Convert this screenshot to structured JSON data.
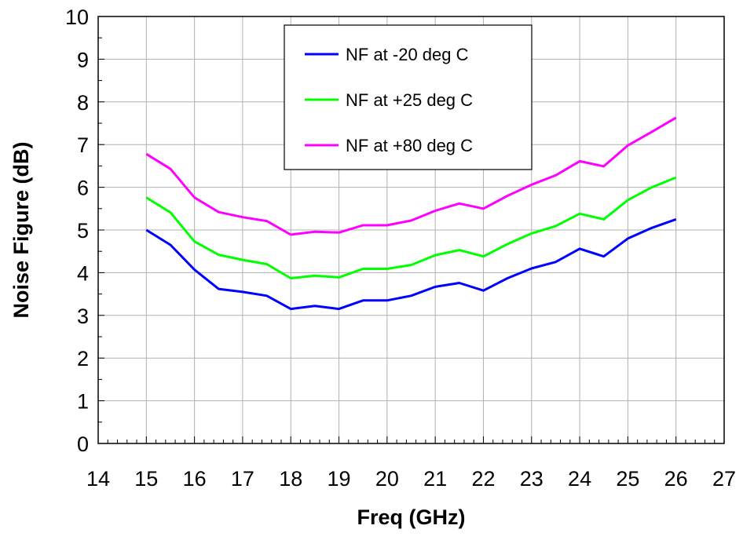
{
  "chart_data": {
    "type": "line",
    "title": "",
    "xlabel": "Freq (GHz)",
    "ylabel": "Noise Figure (dB)",
    "xlim": [
      14,
      27
    ],
    "ylim": [
      0,
      10
    ],
    "xticks": [
      14,
      15,
      16,
      17,
      18,
      19,
      20,
      21,
      22,
      23,
      24,
      25,
      26,
      27
    ],
    "yticks": [
      0,
      1,
      2,
      3,
      4,
      5,
      6,
      7,
      8,
      9,
      10
    ],
    "grid": true,
    "legend_position": "top-center",
    "x": [
      15,
      15.5,
      16,
      16.5,
      17,
      17.5,
      18,
      18.5,
      19,
      19.5,
      20,
      20.5,
      21,
      21.5,
      22,
      22.5,
      23,
      23.5,
      24,
      24.5,
      25,
      25.5,
      26
    ],
    "series": [
      {
        "name": "NF at -20 deg C",
        "color": "#0000ff",
        "values": [
          5.0,
          4.65,
          4.07,
          3.62,
          3.55,
          3.46,
          3.15,
          3.22,
          3.15,
          3.35,
          3.35,
          3.46,
          3.67,
          3.76,
          3.58,
          3.87,
          4.1,
          4.25,
          4.56,
          4.38,
          4.8,
          5.05,
          5.25
        ]
      },
      {
        "name": "NF at +25 deg C",
        "color": "#00ff00",
        "values": [
          5.76,
          5.41,
          4.73,
          4.42,
          4.3,
          4.2,
          3.87,
          3.93,
          3.89,
          4.09,
          4.09,
          4.18,
          4.41,
          4.53,
          4.38,
          4.67,
          4.92,
          5.09,
          5.38,
          5.25,
          5.7,
          6.0,
          6.23
        ]
      },
      {
        "name": "NF at +80 deg C",
        "color": "#ff00ff",
        "values": [
          6.78,
          6.43,
          5.76,
          5.42,
          5.3,
          5.21,
          4.89,
          4.96,
          4.94,
          5.11,
          5.11,
          5.22,
          5.45,
          5.62,
          5.5,
          5.8,
          6.06,
          6.28,
          6.61,
          6.49,
          6.98,
          7.3,
          7.63
        ]
      }
    ]
  }
}
